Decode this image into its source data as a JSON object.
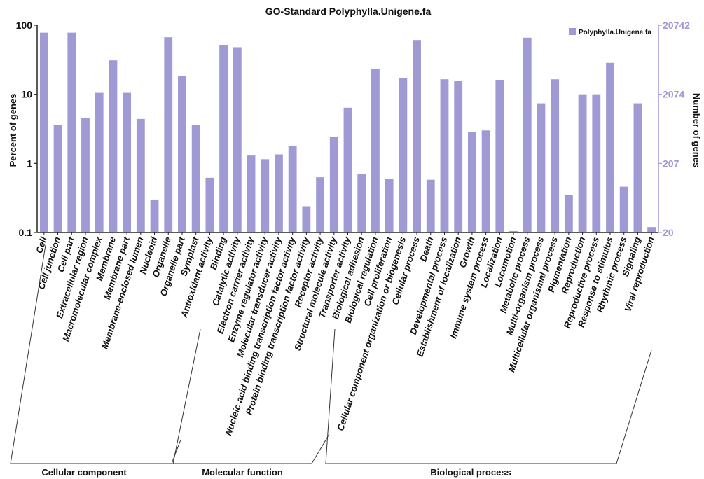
{
  "chart_data": {
    "type": "bar",
    "title": "GO-Standard Polyphylla.Unigene.fa",
    "ylabel_left": "Percent of genes",
    "ylabel_right": "Number of genes",
    "yscale": "log",
    "ylim": [
      0.1,
      100
    ],
    "left_ticks": [
      "100",
      "10",
      "1",
      "0.1"
    ],
    "right_ticks": [
      "20742",
      "2074",
      "207",
      "20"
    ],
    "legend": [
      "Polyphylla.Unigene.fa"
    ],
    "colors": {
      "bar": "#9f9ad3",
      "right_axis": "#9f9ad3"
    },
    "categories": [
      "Cell",
      "Cell junction",
      "Cell part",
      "Extracellular region",
      "Macromolecular complex",
      "Membrane",
      "Membrane part",
      "Membrane-enclosed lumen",
      "Nucleoid",
      "Organelle",
      "Organelle part",
      "Symplast",
      "Antioxidant activity",
      "Binding",
      "Catalytic activity",
      "Electron carrier activity",
      "Enzyme regulator activity",
      "Molecular transducer activity",
      "Nucleic acid binding transcription factor activity",
      "Protein binding transcription factor activity",
      "Receptor activity",
      "Structural molecule activity",
      "Transporter activity",
      "Biological adhesion",
      "Biological regulation",
      "Cell proliferation",
      "Cellular component organization or biogenesis",
      "Cellular process",
      "Death",
      "Developmental process",
      "Establishment of localization",
      "Growth",
      "Immune system process",
      "Localization",
      "Locomotion",
      "Metabolic process",
      "Multi-organism process",
      "Multicellular organismal process",
      "Pigmentation",
      "Reproduction",
      "Reproductive process",
      "Response to stimulus",
      "Rhythmic process",
      "Signaling",
      "Viral reproduction"
    ],
    "series": [
      {
        "name": "Polyphylla.Unigene.fa",
        "values": [
          78,
          3.6,
          78,
          4.5,
          10.5,
          31,
          10.5,
          4.4,
          0.3,
          67,
          18.5,
          3.6,
          0.62,
          52,
          48,
          1.3,
          1.15,
          1.35,
          1.8,
          0.24,
          0.63,
          2.4,
          6.4,
          0.7,
          23.5,
          0.6,
          17,
          61,
          0.58,
          16.5,
          15.5,
          2.85,
          3.0,
          16.2,
          0.105,
          66,
          7.4,
          16.5,
          0.35,
          10,
          10,
          28.5,
          0.46,
          7.4,
          0.12
        ]
      }
    ],
    "groups": [
      {
        "label": "Cellular component",
        "from": 0,
        "to": 11
      },
      {
        "label": "Molecular function",
        "from": 12,
        "to": 22
      },
      {
        "label": "Biological process",
        "from": 23,
        "to": 44
      }
    ]
  }
}
